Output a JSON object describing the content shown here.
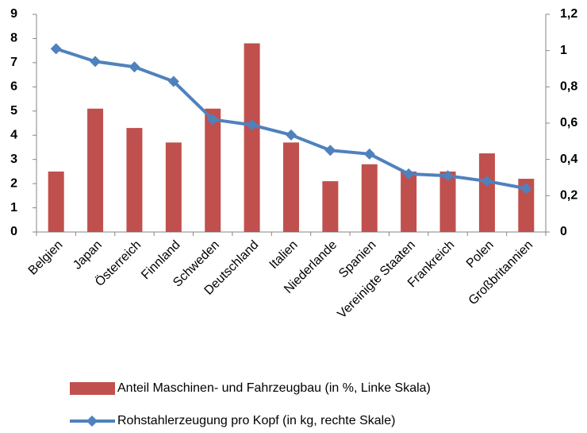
{
  "chart_data": {
    "type": "bar-line",
    "categories": [
      "Belgien",
      "Japan",
      "Österreich",
      "Finnland",
      "Schweden",
      "Deutschland",
      "Italien",
      "Niederlande",
      "Spanien",
      "Vereinigte Staaten",
      "Frankreich",
      "Polen",
      "Großbritannien"
    ],
    "series": [
      {
        "name": "Anteil Maschinen- und Fahrzeugbau (in %, Linke Skala)",
        "type": "bar",
        "color": "#c0504d",
        "values": [
          2.5,
          5.1,
          4.3,
          3.7,
          5.1,
          7.8,
          3.7,
          2.1,
          2.8,
          2.5,
          2.5,
          3.25,
          2.2
        ]
      },
      {
        "name": "Rohstahlerzeugung pro Kopf (in kg, rechte Skale)",
        "type": "line",
        "axis": "y2",
        "color": "#4f81bd",
        "values": [
          1.01,
          0.94,
          0.91,
          0.83,
          0.62,
          0.59,
          0.535,
          0.45,
          0.43,
          0.32,
          0.31,
          0.28,
          0.24
        ]
      }
    ],
    "ylim": [
      0,
      9
    ],
    "yticks": [
      0,
      1,
      2,
      3,
      4,
      5,
      6,
      7,
      8,
      9
    ],
    "y2lim": [
      0,
      1.2
    ],
    "y2ticks": [
      0,
      {
        "value": 0.2,
        "label": "0,2"
      },
      {
        "value": 0.4,
        "label": "0,4"
      },
      {
        "value": 0.6,
        "label": "0,6"
      },
      {
        "value": 0.8,
        "label": "0,8"
      },
      1,
      {
        "value": 1.2,
        "label": "1,2"
      }
    ],
    "grid": false,
    "legend": "bottom"
  }
}
